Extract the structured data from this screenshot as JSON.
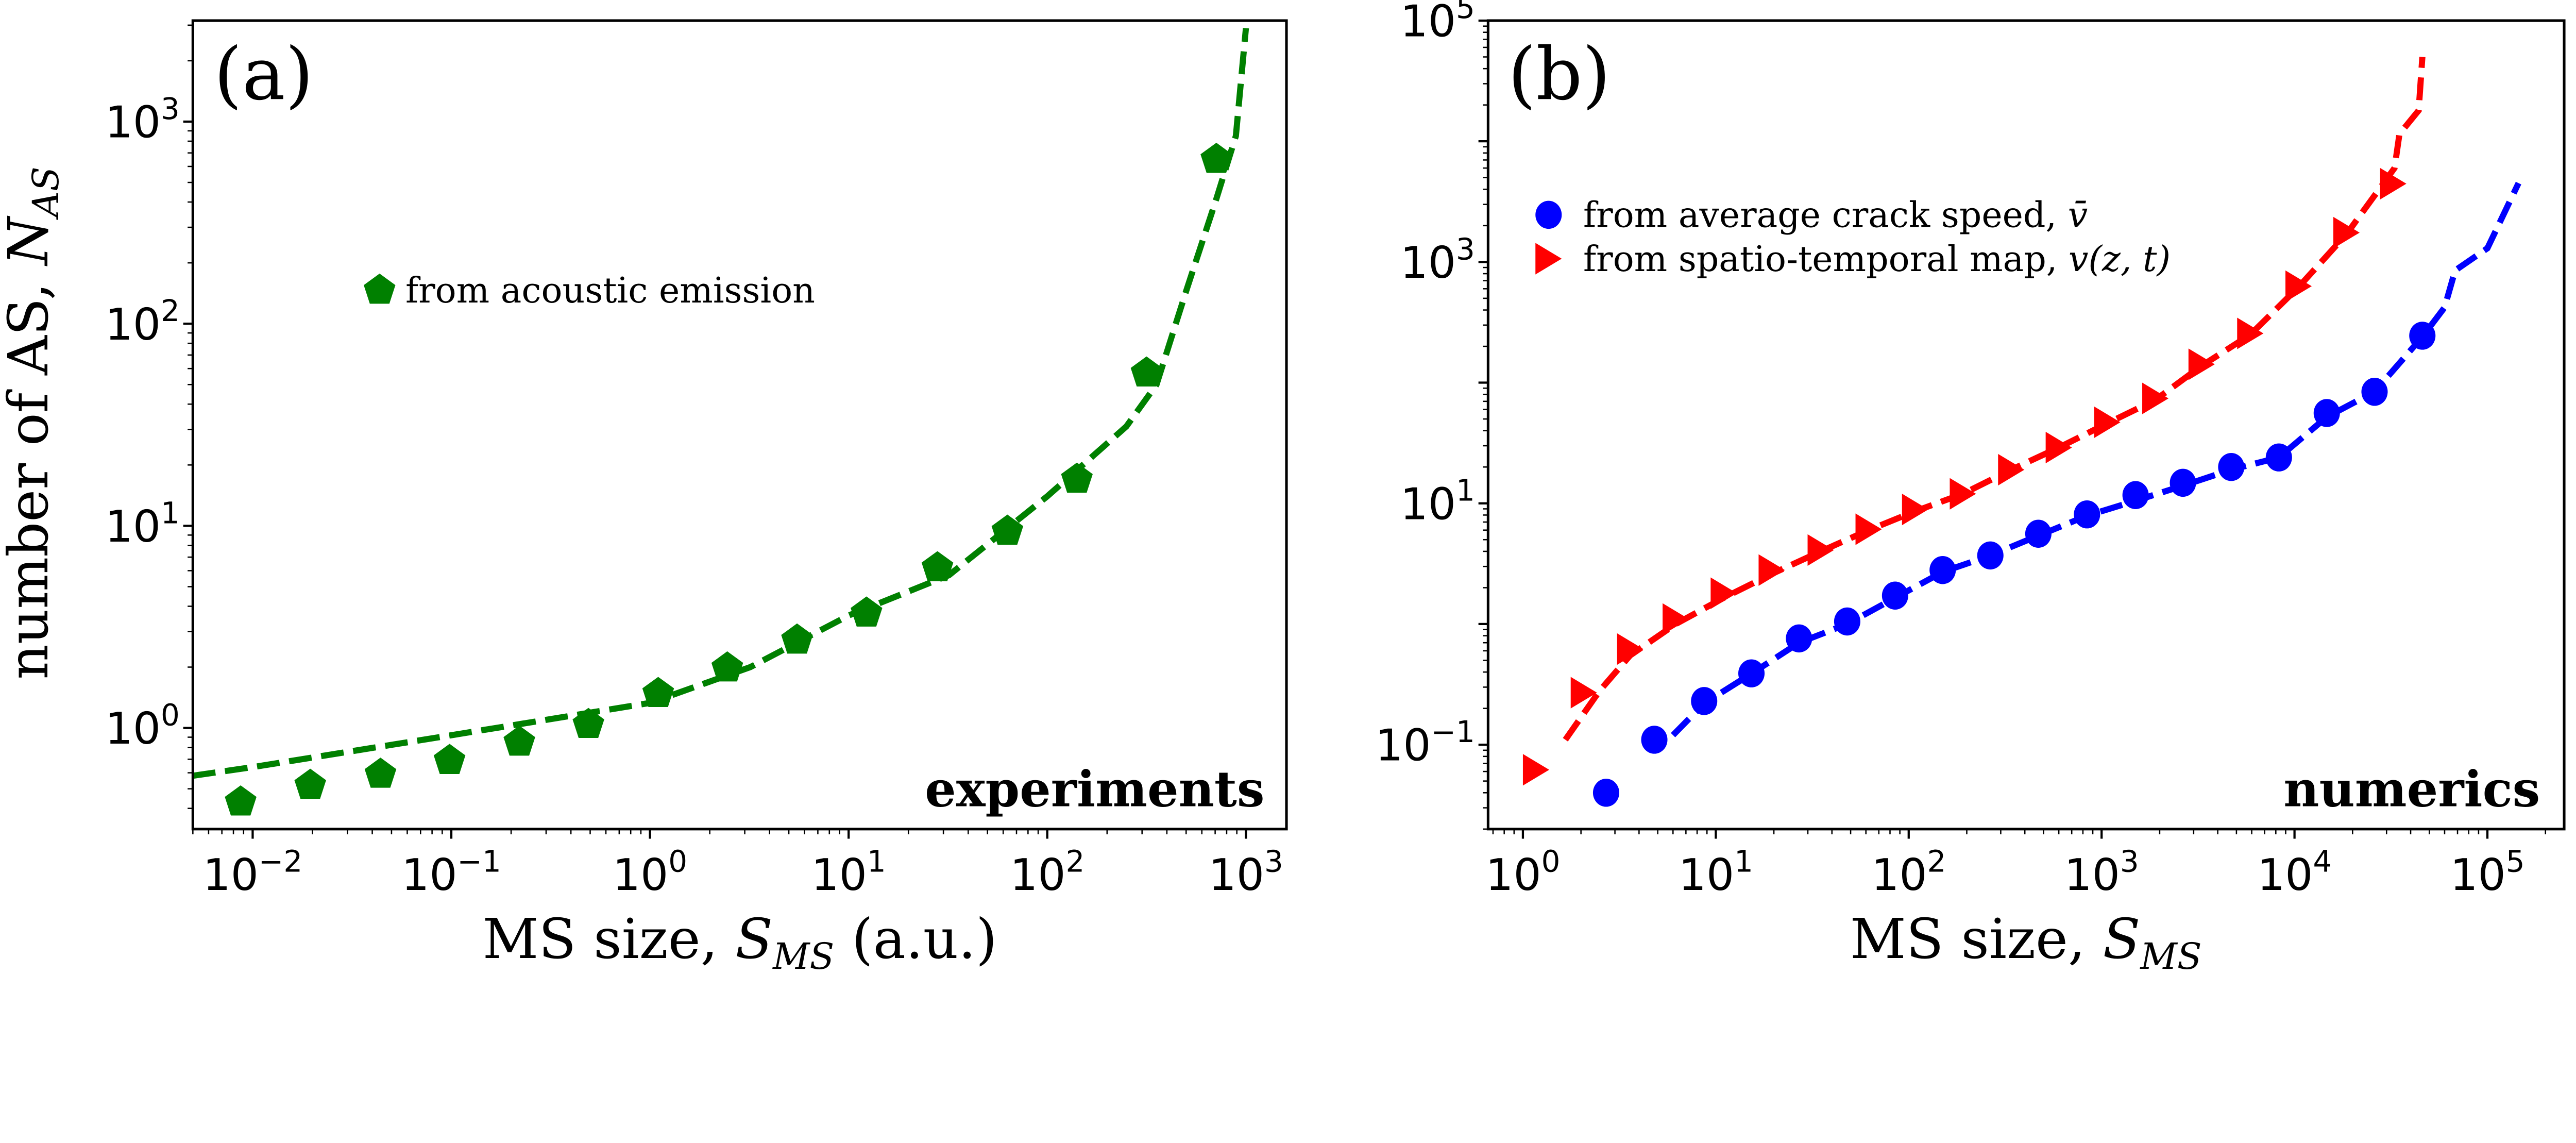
{
  "chart_data": [
    {
      "type": "scatter",
      "panel_label": "(a)",
      "corner_label": "experiments",
      "xlabel": {
        "text": "MS size, ",
        "symbol": "S",
        "subscript": "MS",
        "suffix": " (a.u.)"
      },
      "ylabel": {
        "text": "number of AS, ",
        "symbol": "N",
        "subscript": "AS"
      },
      "xscale": "log",
      "yscale": "log",
      "xlim": [
        0.005,
        1600
      ],
      "ylim": [
        0.316,
        3160
      ],
      "xticks": [
        {
          "base": "10",
          "exp": "−2",
          "value": 0.01
        },
        {
          "base": "10",
          "exp": "−1",
          "value": 0.1
        },
        {
          "base": "10",
          "exp": "0",
          "value": 1
        },
        {
          "base": "10",
          "exp": "1",
          "value": 10
        },
        {
          "base": "10",
          "exp": "2",
          "value": 100
        },
        {
          "base": "10",
          "exp": "3",
          "value": 1000
        }
      ],
      "yticks": [
        {
          "base": "10",
          "exp": "0",
          "value": 1
        },
        {
          "base": "10",
          "exp": "1",
          "value": 10
        },
        {
          "base": "10",
          "exp": "2",
          "value": 100
        },
        {
          "base": "10",
          "exp": "3",
          "value": 1000
        }
      ],
      "grid": false,
      "legend_placement": "upper-left",
      "series": [
        {
          "name": "from acoustic emission",
          "marker": "pentagon",
          "color": "#008000",
          "x": [
            0.0087,
            0.0195,
            0.044,
            0.098,
            0.22,
            0.49,
            1.1,
            2.45,
            5.5,
            12.3,
            28,
            63,
            141,
            316,
            710
          ],
          "y": [
            0.43,
            0.52,
            0.59,
            0.69,
            0.85,
            1.04,
            1.48,
            1.98,
            2.72,
            3.7,
            6.2,
            9.4,
            17,
            57,
            650
          ]
        },
        {
          "style": "dashed",
          "color": "#008000",
          "x": [
            0.005,
            0.01,
            0.1,
            1,
            3.2,
            10,
            32,
            100,
            250,
            355,
            500,
            710,
            890,
            1000
          ],
          "y": [
            0.58,
            0.64,
            0.92,
            1.33,
            2.0,
            3.6,
            5.7,
            14,
            31,
            50,
            145,
            415,
            850,
            2900
          ]
        }
      ]
    },
    {
      "type": "scatter",
      "panel_label": "(b)",
      "corner_label": "numerics",
      "xlabel": {
        "text": "MS size, ",
        "symbol": "S",
        "subscript": "MS",
        "suffix": ""
      },
      "ylabel": null,
      "xscale": "log",
      "yscale": "log",
      "xlim": [
        0.66,
        250000
      ],
      "ylim": [
        0.02,
        100000
      ],
      "xticks": [
        {
          "base": "10",
          "exp": "0",
          "value": 1
        },
        {
          "base": "10",
          "exp": "1",
          "value": 10
        },
        {
          "base": "10",
          "exp": "2",
          "value": 100
        },
        {
          "base": "10",
          "exp": "3",
          "value": 1000
        },
        {
          "base": "10",
          "exp": "4",
          "value": 10000
        },
        {
          "base": "10",
          "exp": "5",
          "value": 100000
        }
      ],
      "yticks": [
        {
          "base": "10",
          "exp": "−1",
          "value": 0.1
        },
        {
          "base": "10",
          "exp": "1",
          "value": 10
        },
        {
          "base": "10",
          "exp": "3",
          "value": 1000
        },
        {
          "base": "10",
          "exp": "5",
          "value": 100000
        }
      ],
      "grid": false,
      "legend_placement": "upper-left",
      "series": [
        {
          "name": "from average crack speed, ",
          "name_math": "v̄",
          "marker": "circle",
          "color": "#0000ff",
          "x": [
            2.7,
            4.8,
            8.7,
            15.3,
            27,
            48,
            85,
            150,
            265,
            470,
            840,
            1500,
            2640,
            4700,
            8300,
            14700,
            26000,
            46000
          ],
          "y": [
            0.04,
            0.11,
            0.23,
            0.39,
            0.76,
            1.05,
            1.72,
            2.8,
            3.7,
            5.6,
            8.1,
            11.7,
            14.8,
            20,
            24,
            56,
            84,
            245
          ]
        },
        {
          "name": "from spatio-temporal map, ",
          "name_math": "v(z, t)",
          "marker": "triangle-right",
          "color": "#ff0000",
          "x": [
            1.17,
            2.07,
            3.6,
            6.2,
            11,
            19.5,
            35,
            62,
            108,
            191,
            340,
            600,
            1070,
            1900,
            3300,
            5900,
            10500,
            18600,
            32500
          ],
          "y": [
            0.062,
            0.27,
            0.62,
            1.1,
            1.8,
            2.8,
            4.1,
            6.1,
            8.9,
            12,
            19,
            29,
            47,
            74,
            142,
            256,
            630,
            1750,
            4450
          ]
        },
        {
          "style": "dashed",
          "color": "#0000ff",
          "x": [
            6,
            8.7,
            15,
            27,
            48,
            85,
            150,
            265,
            470,
            840,
            1500,
            2640,
            4700,
            8300,
            14700,
            26000,
            46000,
            60000,
            68000,
            100000,
            145000
          ],
          "y": [
            0.12,
            0.22,
            0.38,
            0.7,
            1.0,
            1.65,
            2.7,
            3.7,
            5.4,
            7.9,
            10.5,
            14,
            19,
            24,
            52,
            84,
            240,
            420,
            850,
            1300,
            4500
          ]
        },
        {
          "style": "dashed",
          "color": "#ff0000",
          "x": [
            1.66,
            2.5,
            3.6,
            6.2,
            11,
            19.5,
            35,
            62,
            108,
            191,
            340,
            600,
            1070,
            1900,
            3300,
            5900,
            10500,
            18600,
            33000,
            35000,
            44000,
            46000
          ],
          "y": [
            0.11,
            0.28,
            0.55,
            1.0,
            1.65,
            2.6,
            4.0,
            6.0,
            8.6,
            12,
            19,
            29,
            46,
            72,
            138,
            250,
            620,
            1700,
            6000,
            11500,
            18000,
            50000
          ]
        }
      ]
    }
  ]
}
